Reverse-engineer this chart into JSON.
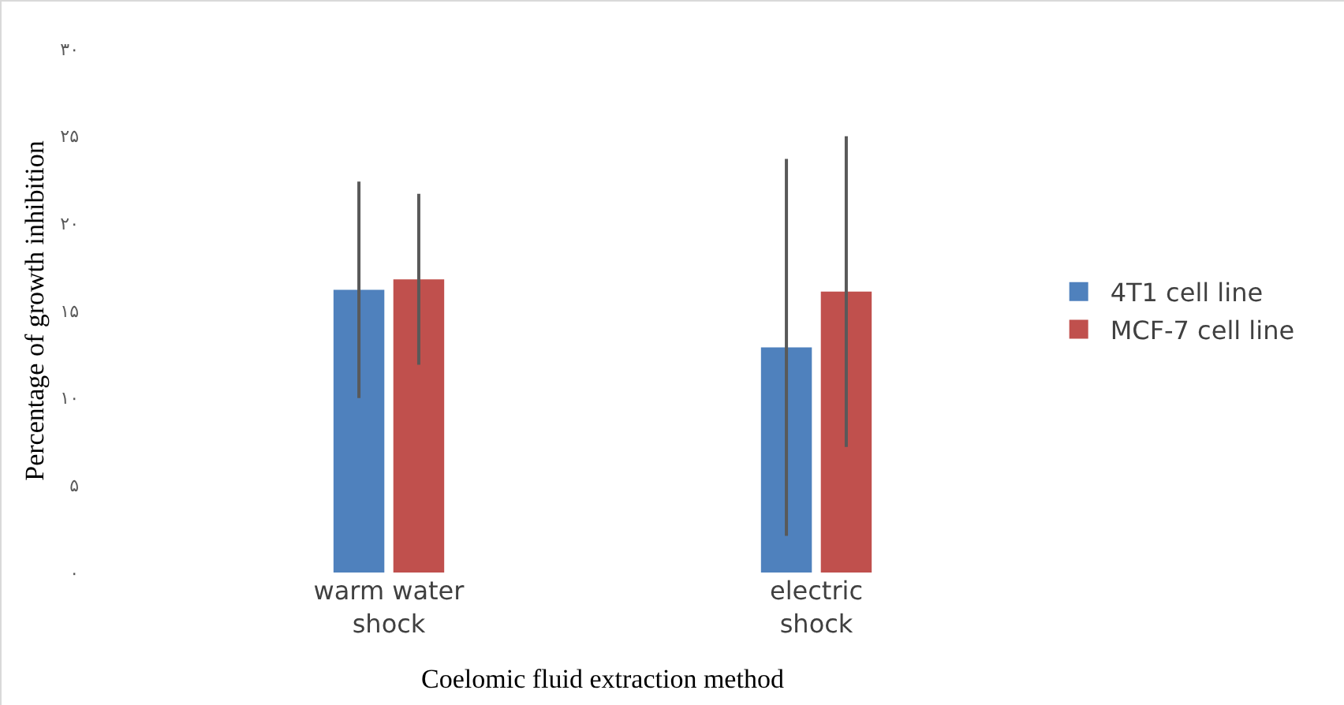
{
  "chart_data": {
    "type": "bar",
    "xlabel": "Coelomic fluid extraction method",
    "ylabel": "Percentage of growth inhibition",
    "categories": [
      "warm water shock",
      "electric shock"
    ],
    "series": [
      {
        "name": "4T1 cell line",
        "color": "#4f81bd",
        "values": [
          16.2,
          12.9
        ],
        "errors": [
          6.2,
          10.8
        ]
      },
      {
        "name": "MCF-7 cell line",
        "color": "#c0504d",
        "values": [
          16.8,
          16.1
        ],
        "errors": [
          4.9,
          8.9
        ]
      }
    ],
    "ylim": [
      0,
      30
    ],
    "yticks": [
      {
        "value": 0,
        "label": "۰"
      },
      {
        "value": 5,
        "label": "۵"
      },
      {
        "value": 10,
        "label": "۱۰"
      },
      {
        "value": 15,
        "label": "۱۵"
      },
      {
        "value": 20,
        "label": "۲۰"
      },
      {
        "value": 25,
        "label": "۲۵"
      },
      {
        "value": 30,
        "label": "۳۰"
      }
    ],
    "grid": false,
    "legend": "right"
  }
}
